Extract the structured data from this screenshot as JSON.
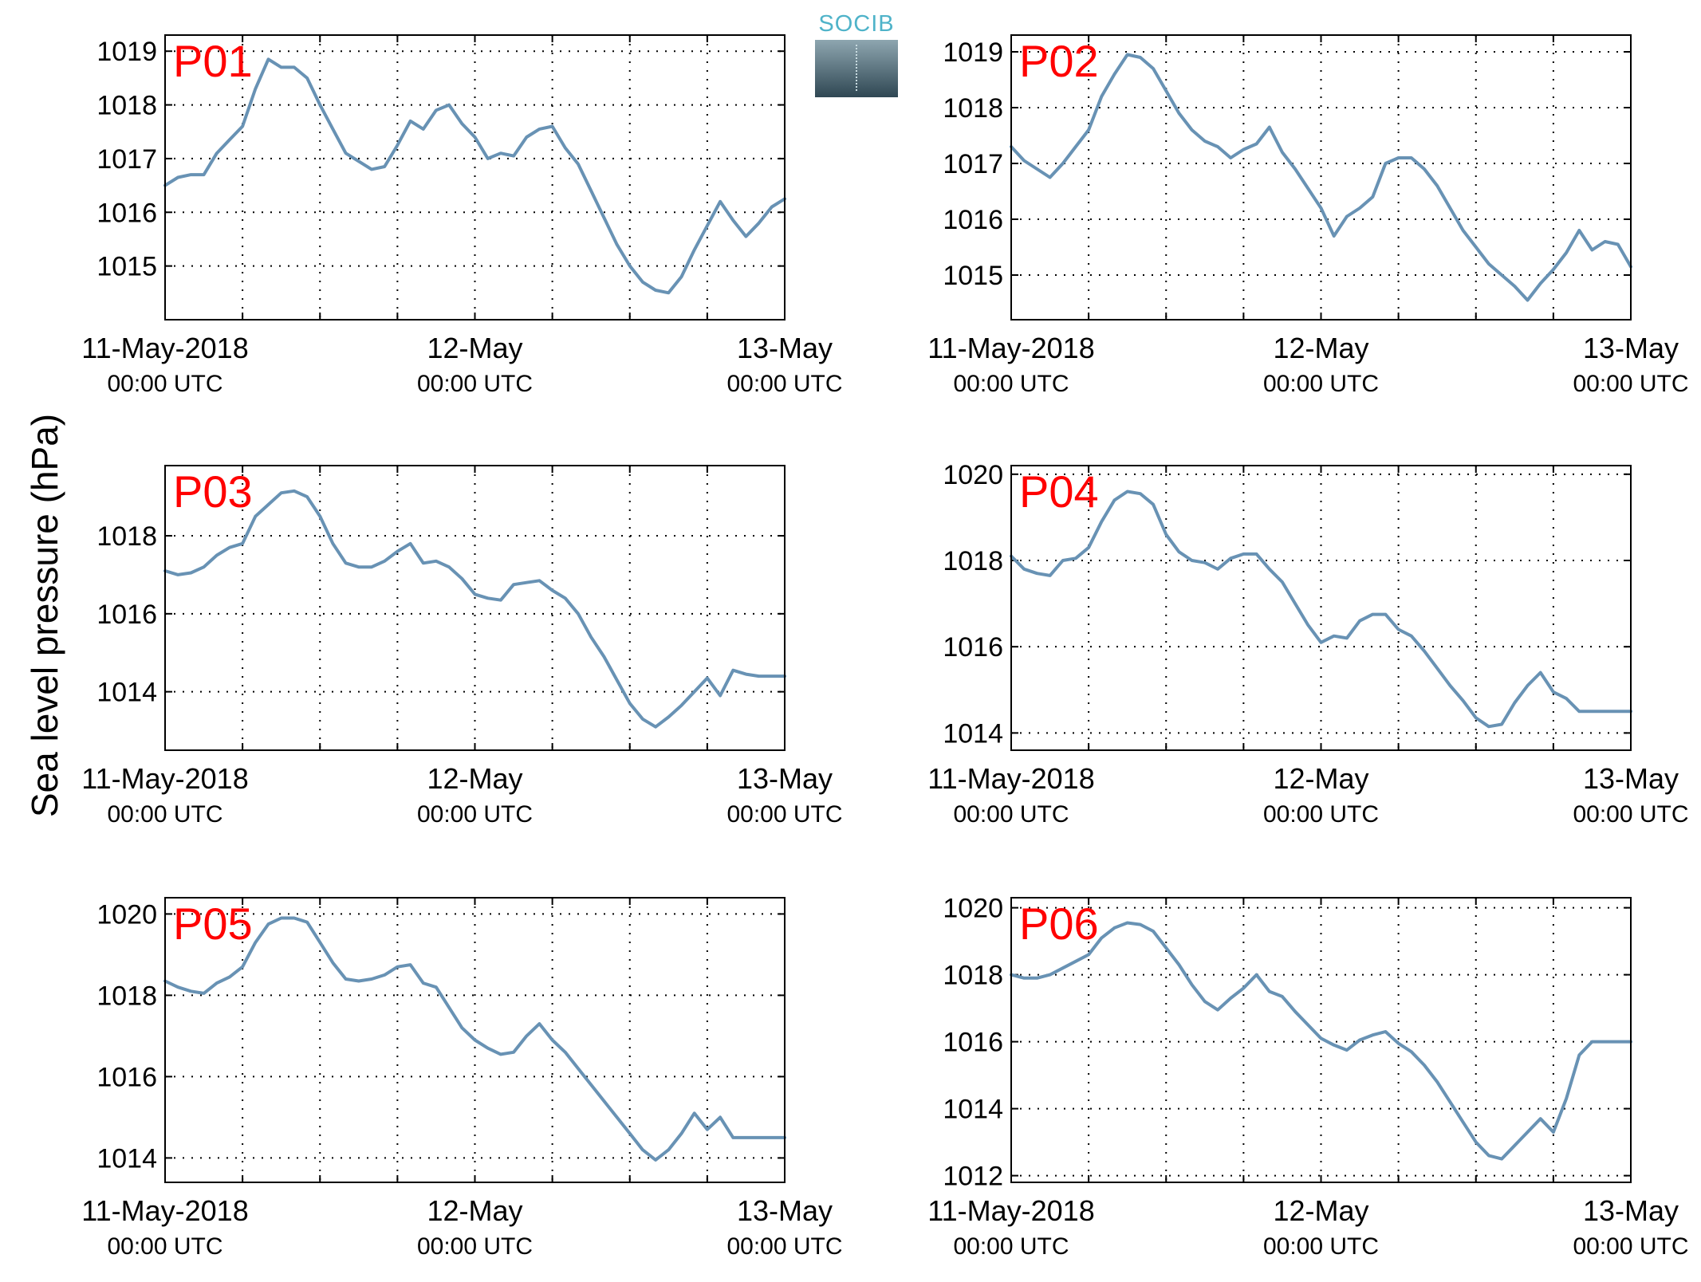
{
  "ylabel": "Sea level pressure (hPa)",
  "logo_text": "SOCIB",
  "colors": {
    "series": "#6892b4",
    "panel_label": "#ff0000",
    "grid": "#000000"
  },
  "chart_data": [
    {
      "type": "line",
      "title": "P01",
      "ylim": [
        1014.0,
        1019.3
      ],
      "yticks": [
        1015,
        1016,
        1017,
        1018,
        1019
      ],
      "xlim": [
        0,
        48
      ],
      "xticks": [
        {
          "x": 0,
          "label": "11-May-2018",
          "sub": "00:00 UTC"
        },
        {
          "x": 24,
          "label": "12-May",
          "sub": "00:00 UTC"
        },
        {
          "x": 48,
          "label": "13-May",
          "sub": "00:00 UTC"
        }
      ],
      "grid": true,
      "x": [
        0,
        1,
        2,
        3,
        4,
        5,
        6,
        7,
        8,
        9,
        10,
        11,
        12,
        13,
        14,
        15,
        16,
        17,
        18,
        19,
        20,
        21,
        22,
        23,
        24,
        25,
        26,
        27,
        28,
        29,
        30,
        31,
        32,
        33,
        34,
        35,
        36,
        37,
        38,
        39,
        40,
        41,
        42,
        43,
        44,
        45,
        46,
        47,
        48
      ],
      "values": [
        1016.5,
        1016.65,
        1016.7,
        1016.7,
        1017.1,
        1017.35,
        1017.6,
        1018.3,
        1018.85,
        1018.7,
        1018.7,
        1018.5,
        1018.0,
        1017.55,
        1017.1,
        1016.95,
        1016.8,
        1016.85,
        1017.25,
        1017.7,
        1017.55,
        1017.9,
        1018.0,
        1017.65,
        1017.4,
        1017.0,
        1017.1,
        1017.05,
        1017.4,
        1017.55,
        1017.6,
        1017.2,
        1016.9,
        1016.4,
        1015.9,
        1015.4,
        1015.0,
        1014.7,
        1014.55,
        1014.5,
        1014.8,
        1015.3,
        1015.75,
        1016.2,
        1015.85,
        1015.55,
        1015.8,
        1016.1,
        1016.25
      ]
    },
    {
      "type": "line",
      "title": "P02",
      "ylim": [
        1014.2,
        1019.3
      ],
      "yticks": [
        1015,
        1016,
        1017,
        1018,
        1019
      ],
      "xlim": [
        0,
        48
      ],
      "xticks": [
        {
          "x": 0,
          "label": "11-May-2018",
          "sub": "00:00 UTC"
        },
        {
          "x": 24,
          "label": "12-May",
          "sub": "00:00 UTC"
        },
        {
          "x": 48,
          "label": "13-May",
          "sub": "00:00 UTC"
        }
      ],
      "grid": true,
      "x": [
        0,
        1,
        2,
        3,
        4,
        5,
        6,
        7,
        8,
        9,
        10,
        11,
        12,
        13,
        14,
        15,
        16,
        17,
        18,
        19,
        20,
        21,
        22,
        23,
        24,
        25,
        26,
        27,
        28,
        29,
        30,
        31,
        32,
        33,
        34,
        35,
        36,
        37,
        38,
        39,
        40,
        41,
        42,
        43,
        44,
        45,
        46,
        47,
        48
      ],
      "values": [
        1017.3,
        1017.05,
        1016.9,
        1016.75,
        1017.0,
        1017.3,
        1017.6,
        1018.2,
        1018.6,
        1018.95,
        1018.9,
        1018.7,
        1018.3,
        1017.9,
        1017.6,
        1017.4,
        1017.3,
        1017.1,
        1017.25,
        1017.35,
        1017.65,
        1017.2,
        1016.9,
        1016.55,
        1016.2,
        1015.7,
        1016.05,
        1016.2,
        1016.4,
        1017.0,
        1017.1,
        1017.1,
        1016.9,
        1016.6,
        1016.2,
        1015.8,
        1015.5,
        1015.2,
        1015.0,
        1014.8,
        1014.55,
        1014.85,
        1015.1,
        1015.4,
        1015.8,
        1015.45,
        1015.6,
        1015.55,
        1015.15
      ]
    },
    {
      "type": "line",
      "title": "P03",
      "ylim": [
        1012.5,
        1019.8
      ],
      "yticks": [
        1014,
        1016,
        1018
      ],
      "xlim": [
        0,
        48
      ],
      "xticks": [
        {
          "x": 0,
          "label": "11-May-2018",
          "sub": "00:00 UTC"
        },
        {
          "x": 24,
          "label": "12-May",
          "sub": "00:00 UTC"
        },
        {
          "x": 48,
          "label": "13-May",
          "sub": "00:00 UTC"
        }
      ],
      "grid": true,
      "x": [
        0,
        1,
        2,
        3,
        4,
        5,
        6,
        7,
        8,
        9,
        10,
        11,
        12,
        13,
        14,
        15,
        16,
        17,
        18,
        19,
        20,
        21,
        22,
        23,
        24,
        25,
        26,
        27,
        28,
        29,
        30,
        31,
        32,
        33,
        34,
        35,
        36,
        37,
        38,
        39,
        40,
        41,
        42,
        43,
        44,
        45,
        46,
        47,
        48
      ],
      "values": [
        1017.1,
        1017.0,
        1017.05,
        1017.2,
        1017.5,
        1017.7,
        1017.8,
        1018.5,
        1018.8,
        1019.1,
        1019.15,
        1019.0,
        1018.5,
        1017.8,
        1017.3,
        1017.2,
        1017.2,
        1017.35,
        1017.6,
        1017.8,
        1017.3,
        1017.35,
        1017.2,
        1016.9,
        1016.5,
        1016.4,
        1016.35,
        1016.75,
        1016.8,
        1016.85,
        1016.6,
        1016.4,
        1016.0,
        1015.4,
        1014.9,
        1014.3,
        1013.7,
        1013.3,
        1013.1,
        1013.35,
        1013.65,
        1014.0,
        1014.35,
        1013.9,
        1014.55,
        1014.45,
        1014.4,
        1014.4,
        1014.4
      ]
    },
    {
      "type": "line",
      "title": "P04",
      "ylim": [
        1013.6,
        1020.2
      ],
      "yticks": [
        1014,
        1016,
        1018,
        1020
      ],
      "xlim": [
        0,
        48
      ],
      "xticks": [
        {
          "x": 0,
          "label": "11-May-2018",
          "sub": "00:00 UTC"
        },
        {
          "x": 24,
          "label": "12-May",
          "sub": "00:00 UTC"
        },
        {
          "x": 48,
          "label": "13-May",
          "sub": "00:00 UTC"
        }
      ],
      "grid": true,
      "x": [
        0,
        1,
        2,
        3,
        4,
        5,
        6,
        7,
        8,
        9,
        10,
        11,
        12,
        13,
        14,
        15,
        16,
        17,
        18,
        19,
        20,
        21,
        22,
        23,
        24,
        25,
        26,
        27,
        28,
        29,
        30,
        31,
        32,
        33,
        34,
        35,
        36,
        37,
        38,
        39,
        40,
        41,
        42,
        43,
        44,
        45,
        46,
        47,
        48
      ],
      "values": [
        1018.1,
        1017.8,
        1017.7,
        1017.65,
        1018.0,
        1018.05,
        1018.3,
        1018.9,
        1019.4,
        1019.6,
        1019.55,
        1019.3,
        1018.6,
        1018.2,
        1018.0,
        1017.95,
        1017.8,
        1018.05,
        1018.15,
        1018.15,
        1017.8,
        1017.5,
        1017.0,
        1016.5,
        1016.1,
        1016.25,
        1016.2,
        1016.6,
        1016.75,
        1016.75,
        1016.4,
        1016.25,
        1015.9,
        1015.5,
        1015.1,
        1014.75,
        1014.35,
        1014.15,
        1014.2,
        1014.7,
        1015.1,
        1015.4,
        1014.95,
        1014.8,
        1014.5,
        1014.5,
        1014.5,
        1014.5,
        1014.5
      ]
    },
    {
      "type": "line",
      "title": "P05",
      "ylim": [
        1013.4,
        1020.4
      ],
      "yticks": [
        1014,
        1016,
        1018,
        1020
      ],
      "xlim": [
        0,
        48
      ],
      "xticks": [
        {
          "x": 0,
          "label": "11-May-2018",
          "sub": "00:00 UTC"
        },
        {
          "x": 24,
          "label": "12-May",
          "sub": "00:00 UTC"
        },
        {
          "x": 48,
          "label": "13-May",
          "sub": "00:00 UTC"
        }
      ],
      "grid": true,
      "x": [
        0,
        1,
        2,
        3,
        4,
        5,
        6,
        7,
        8,
        9,
        10,
        11,
        12,
        13,
        14,
        15,
        16,
        17,
        18,
        19,
        20,
        21,
        22,
        23,
        24,
        25,
        26,
        27,
        28,
        29,
        30,
        31,
        32,
        33,
        34,
        35,
        36,
        37,
        38,
        39,
        40,
        41,
        42,
        43,
        44,
        45,
        46,
        47,
        48
      ],
      "values": [
        1018.35,
        1018.2,
        1018.1,
        1018.05,
        1018.3,
        1018.45,
        1018.7,
        1019.3,
        1019.75,
        1019.9,
        1019.9,
        1019.8,
        1019.3,
        1018.8,
        1018.4,
        1018.35,
        1018.4,
        1018.5,
        1018.7,
        1018.75,
        1018.3,
        1018.2,
        1017.7,
        1017.2,
        1016.9,
        1016.7,
        1016.55,
        1016.6,
        1017.0,
        1017.3,
        1016.9,
        1016.6,
        1016.2,
        1015.8,
        1015.4,
        1015.0,
        1014.6,
        1014.2,
        1013.95,
        1014.2,
        1014.6,
        1015.1,
        1014.7,
        1015.0,
        1014.5,
        1014.5,
        1014.5,
        1014.5,
        1014.5
      ]
    },
    {
      "type": "line",
      "title": "P06",
      "ylim": [
        1011.8,
        1020.3
      ],
      "yticks": [
        1012,
        1014,
        1016,
        1018,
        1020
      ],
      "xlim": [
        0,
        48
      ],
      "xticks": [
        {
          "x": 0,
          "label": "11-May-2018",
          "sub": "00:00 UTC"
        },
        {
          "x": 24,
          "label": "12-May",
          "sub": "00:00 UTC"
        },
        {
          "x": 48,
          "label": "13-May",
          "sub": "00:00 UTC"
        }
      ],
      "grid": true,
      "x": [
        0,
        1,
        2,
        3,
        4,
        5,
        6,
        7,
        8,
        9,
        10,
        11,
        12,
        13,
        14,
        15,
        16,
        17,
        18,
        19,
        20,
        21,
        22,
        23,
        24,
        25,
        26,
        27,
        28,
        29,
        30,
        31,
        32,
        33,
        34,
        35,
        36,
        37,
        38,
        39,
        40,
        41,
        42,
        43,
        44,
        45,
        46,
        47,
        48
      ],
      "values": [
        1018.0,
        1017.9,
        1017.9,
        1018.0,
        1018.2,
        1018.4,
        1018.6,
        1019.1,
        1019.4,
        1019.55,
        1019.5,
        1019.3,
        1018.8,
        1018.3,
        1017.7,
        1017.2,
        1016.95,
        1017.3,
        1017.6,
        1018.0,
        1017.5,
        1017.35,
        1016.9,
        1016.5,
        1016.1,
        1015.9,
        1015.75,
        1016.05,
        1016.2,
        1016.3,
        1015.95,
        1015.7,
        1015.3,
        1014.8,
        1014.2,
        1013.6,
        1013.0,
        1012.6,
        1012.5,
        1012.9,
        1013.3,
        1013.7,
        1013.3,
        1014.3,
        1015.6,
        1016.0,
        1016.0,
        1016.0,
        1016.0
      ]
    }
  ]
}
